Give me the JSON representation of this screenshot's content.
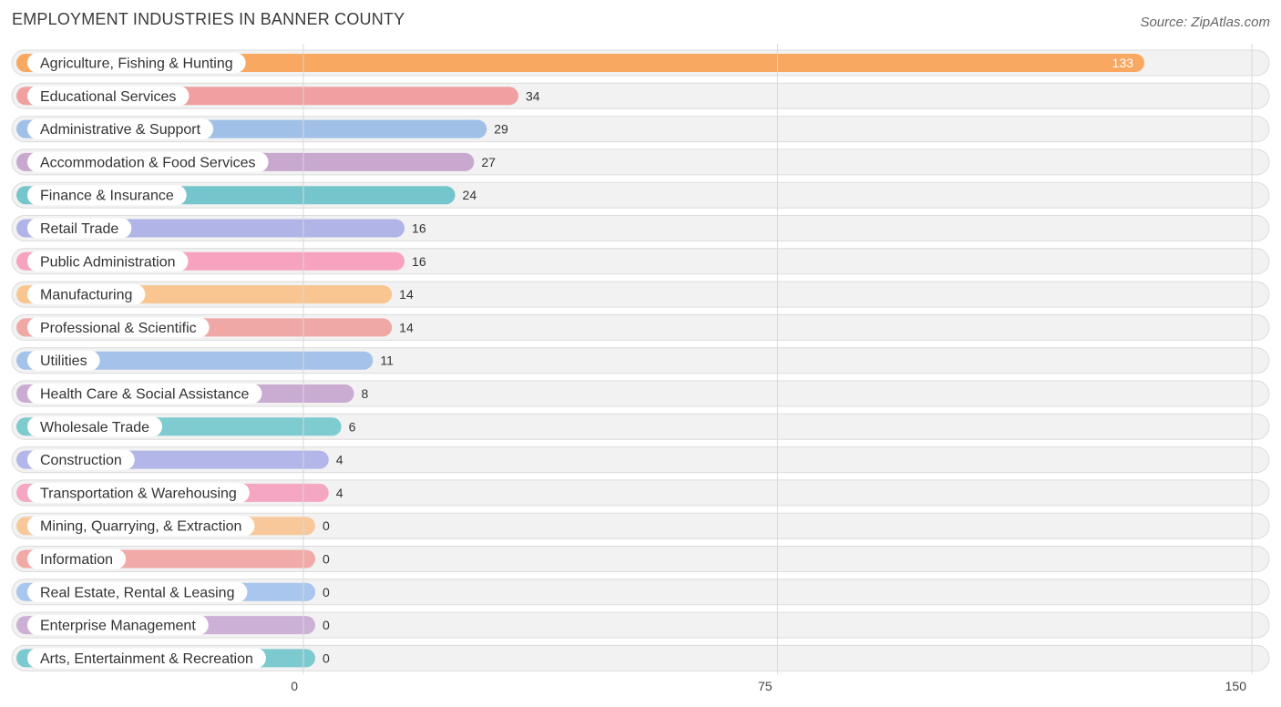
{
  "title": "EMPLOYMENT INDUSTRIES IN BANNER COUNTY",
  "source": "Source: ZipAtlas.com",
  "chart_data": {
    "type": "bar",
    "orientation": "horizontal",
    "title": "EMPLOYMENT INDUSTRIES IN BANNER COUNTY",
    "categories": [
      "Agriculture, Fishing & Hunting",
      "Educational Services",
      "Administrative & Support",
      "Accommodation & Food Services",
      "Finance & Insurance",
      "Retail Trade",
      "Public Administration",
      "Manufacturing",
      "Professional & Scientific",
      "Utilities",
      "Health Care & Social Assistance",
      "Wholesale Trade",
      "Construction",
      "Transportation & Warehousing",
      "Mining, Quarrying, & Extraction",
      "Information",
      "Real Estate, Rental & Leasing",
      "Enterprise Management",
      "Arts, Entertainment & Recreation"
    ],
    "values": [
      133,
      34,
      29,
      27,
      24,
      16,
      16,
      14,
      14,
      11,
      8,
      6,
      4,
      4,
      0,
      0,
      0,
      0,
      0
    ],
    "colors": [
      "#f9a862",
      "#f0a0a0",
      "#a0c0e8",
      "#c9a8cf",
      "#74c6cc",
      "#b0b4e6",
      "#f7a2bf",
      "#f9c692",
      "#f0a8a6",
      "#a4c2ea",
      "#caacd2",
      "#7ecbd0",
      "#b2b6e8",
      "#f4a6c2",
      "#f9c89a",
      "#f2aaa8",
      "#a8c6ee",
      "#ccb0d6",
      "#7ccad0"
    ],
    "xlim": [
      0,
      150
    ],
    "xticks": [
      0,
      75,
      150
    ],
    "grid": true
  }
}
